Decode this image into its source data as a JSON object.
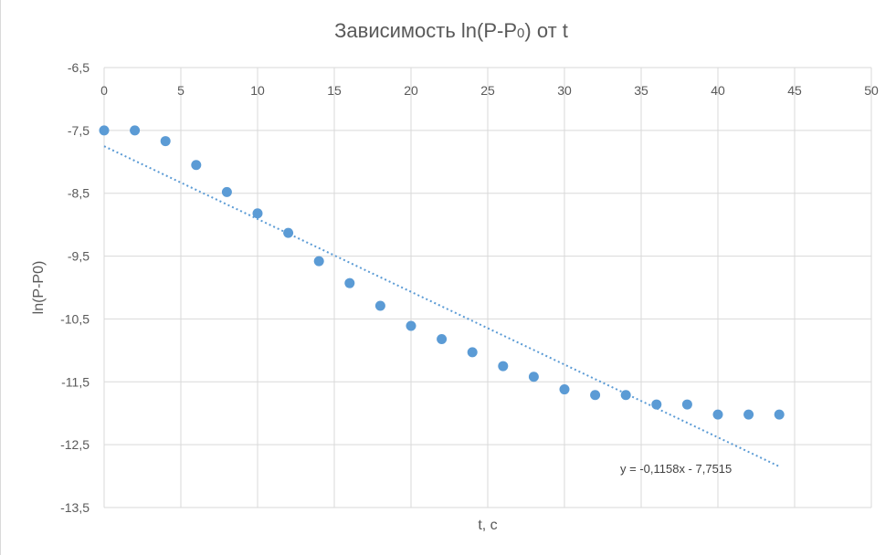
{
  "chart_data": {
    "type": "scatter",
    "title": "Зависимость ln(P-P0) от t",
    "title_parts": {
      "before": "Зависимость ln(P-P",
      "sub": "0",
      "after": ") от t"
    },
    "xlabel": "t, c",
    "ylabel": "ln(P-P0)",
    "xlim": [
      0,
      50
    ],
    "ylim": [
      -13.5,
      -6.5
    ],
    "x_ticks": [
      0,
      5,
      10,
      15,
      20,
      25,
      30,
      35,
      40,
      45,
      50
    ],
    "x_tick_labels": [
      "0",
      "5",
      "10",
      "15",
      "20",
      "25",
      "30",
      "35",
      "40",
      "45",
      "50"
    ],
    "y_ticks": [
      -6.5,
      -7.5,
      -8.5,
      -9.5,
      -10.5,
      -11.5,
      -12.5,
      -13.5
    ],
    "y_tick_labels": [
      "-6,5",
      "-7,5",
      "-8,5",
      "-9,5",
      "-10,5",
      "-11,5",
      "-12,5",
      "-13,5"
    ],
    "x_axis_position": "top",
    "grid": true,
    "series": [
      {
        "color": "#5b9bd5",
        "points": [
          [
            0,
            -7.5
          ],
          [
            2,
            -7.5
          ],
          [
            4,
            -7.67
          ],
          [
            6,
            -8.05
          ],
          [
            8,
            -8.48
          ],
          [
            10,
            -8.82
          ],
          [
            12,
            -9.13
          ],
          [
            14,
            -9.58
          ],
          [
            16,
            -9.93
          ],
          [
            18,
            -10.29
          ],
          [
            20,
            -10.61
          ],
          [
            22,
            -10.82
          ],
          [
            24,
            -11.03
          ],
          [
            26,
            -11.25
          ],
          [
            28,
            -11.42
          ],
          [
            30,
            -11.62
          ],
          [
            32,
            -11.71
          ],
          [
            34,
            -11.71
          ],
          [
            36,
            -11.86
          ],
          [
            38,
            -11.86
          ],
          [
            40,
            -12.02
          ],
          [
            42,
            -12.02
          ],
          [
            44,
            -12.02
          ]
        ]
      }
    ],
    "trendline": {
      "type": "linear",
      "slope": -0.1158,
      "intercept": -7.7515,
      "x_range": [
        0,
        44
      ],
      "style": "dotted",
      "color": "#5b9bd5",
      "equation_label": "y = -0,1158x - 7,7515"
    }
  }
}
